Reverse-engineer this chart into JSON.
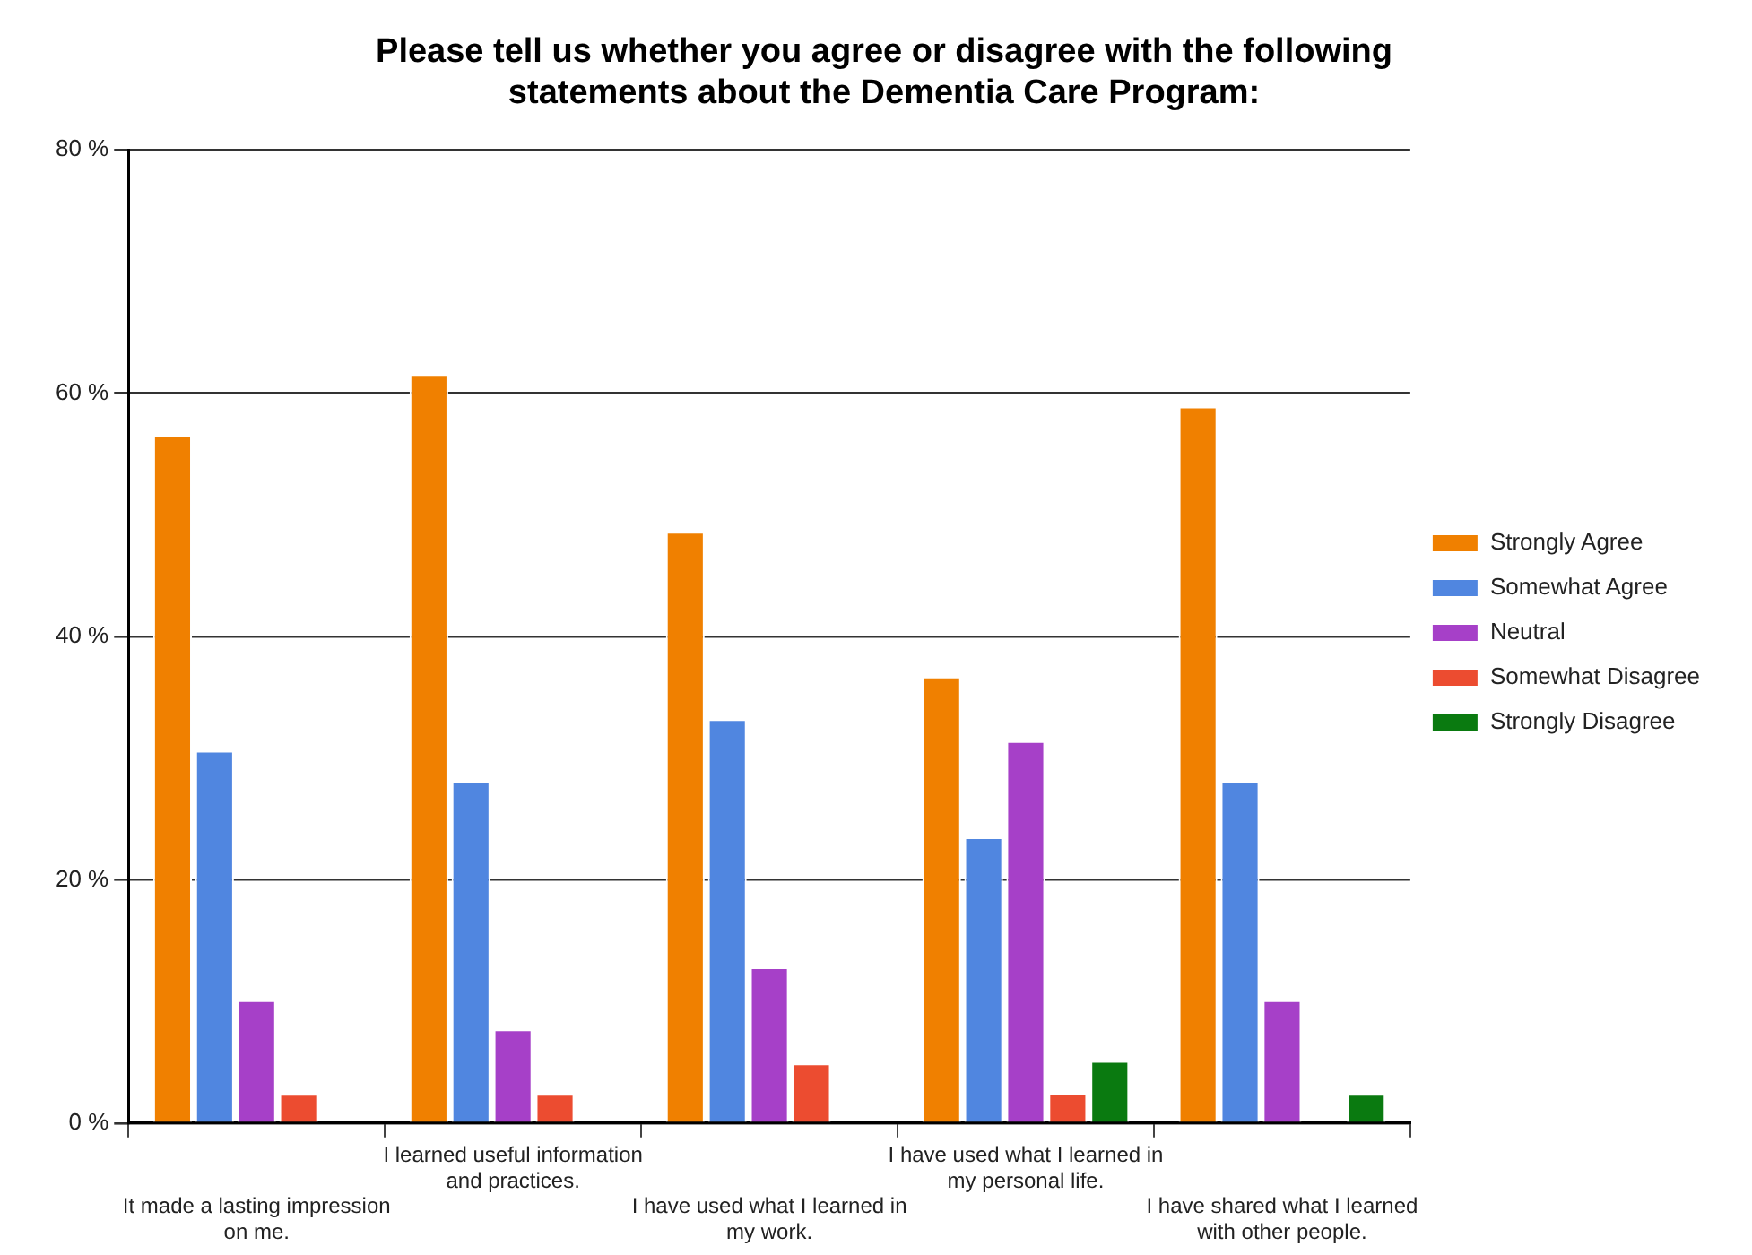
{
  "chart_data": {
    "type": "bar",
    "title": "Please tell us whether you agree or disagree with the following statements about the Dementia Care Program:",
    "categories": [
      "It made a lasting impression on me.",
      "I learned useful information and practices.",
      "I have used what I learned in my work.",
      "I have used what I learned in my personal life.",
      "I have shared what I learned with other people."
    ],
    "series": [
      {
        "name": "Strongly Agree",
        "color": "#f08000",
        "values": [
          56.5,
          61.5,
          48.6,
          36.7,
          58.9
        ]
      },
      {
        "name": "Somewhat Agree",
        "color": "#5086e0",
        "values": [
          30.6,
          28.1,
          33.2,
          23.5,
          28.1
        ]
      },
      {
        "name": "Neutral",
        "color": "#a640c8",
        "values": [
          10.1,
          7.7,
          12.8,
          31.4,
          10.1
        ]
      },
      {
        "name": "Somewhat Disagree",
        "color": "#ec4c30",
        "values": [
          2.4,
          2.4,
          4.9,
          2.5,
          null
        ]
      },
      {
        "name": "Strongly Disagree",
        "color": "#0a7a10",
        "values": [
          null,
          null,
          null,
          5.1,
          2.4
        ]
      }
    ],
    "ylim": [
      0,
      80
    ],
    "yticks": [
      {
        "value": 0,
        "label": "0 %"
      },
      {
        "value": 20,
        "label": "20 %"
      },
      {
        "value": 40,
        "label": "40 %"
      },
      {
        "value": 60,
        "label": "60 %"
      },
      {
        "value": 80,
        "label": "80 %"
      }
    ],
    "grid": "y",
    "legend": "right"
  }
}
